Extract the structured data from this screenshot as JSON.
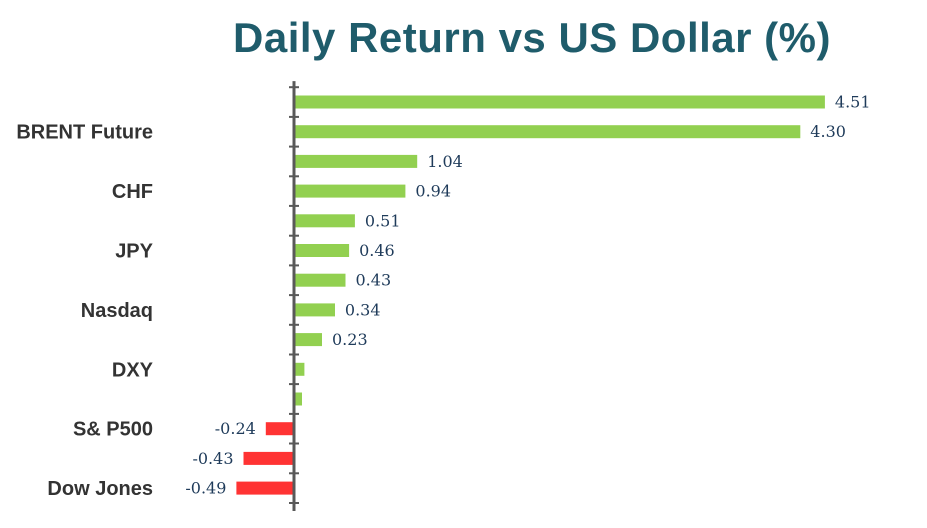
{
  "chart_data": {
    "type": "bar",
    "orientation": "horizontal",
    "title": "Daily Return vs US Dollar (%)",
    "categories": [
      "",
      "BRENT Future",
      "",
      "CHF",
      "",
      "JPY",
      "",
      "Nasdaq",
      "",
      "DXY",
      "",
      "S& P500",
      "",
      "Dow Jones"
    ],
    "values": [
      4.51,
      4.3,
      1.04,
      0.94,
      0.51,
      0.46,
      0.43,
      0.34,
      0.23,
      0.08,
      0.06,
      -0.24,
      -0.43,
      -0.49
    ],
    "value_labels": [
      "4.51",
      "4.30",
      "1.04",
      "0.94",
      "0.51",
      "0.46",
      "0.43",
      "0.34",
      "0.23",
      "",
      "",
      "-0.24",
      "-0.43",
      "-0.49"
    ],
    "xlim": [
      -0.55,
      4.6
    ],
    "colors": {
      "positive": "#92d050",
      "negative": "#ff3333",
      "axis": "#595959",
      "title": "#1f5c6b"
    },
    "grid": false,
    "legend": "none"
  }
}
